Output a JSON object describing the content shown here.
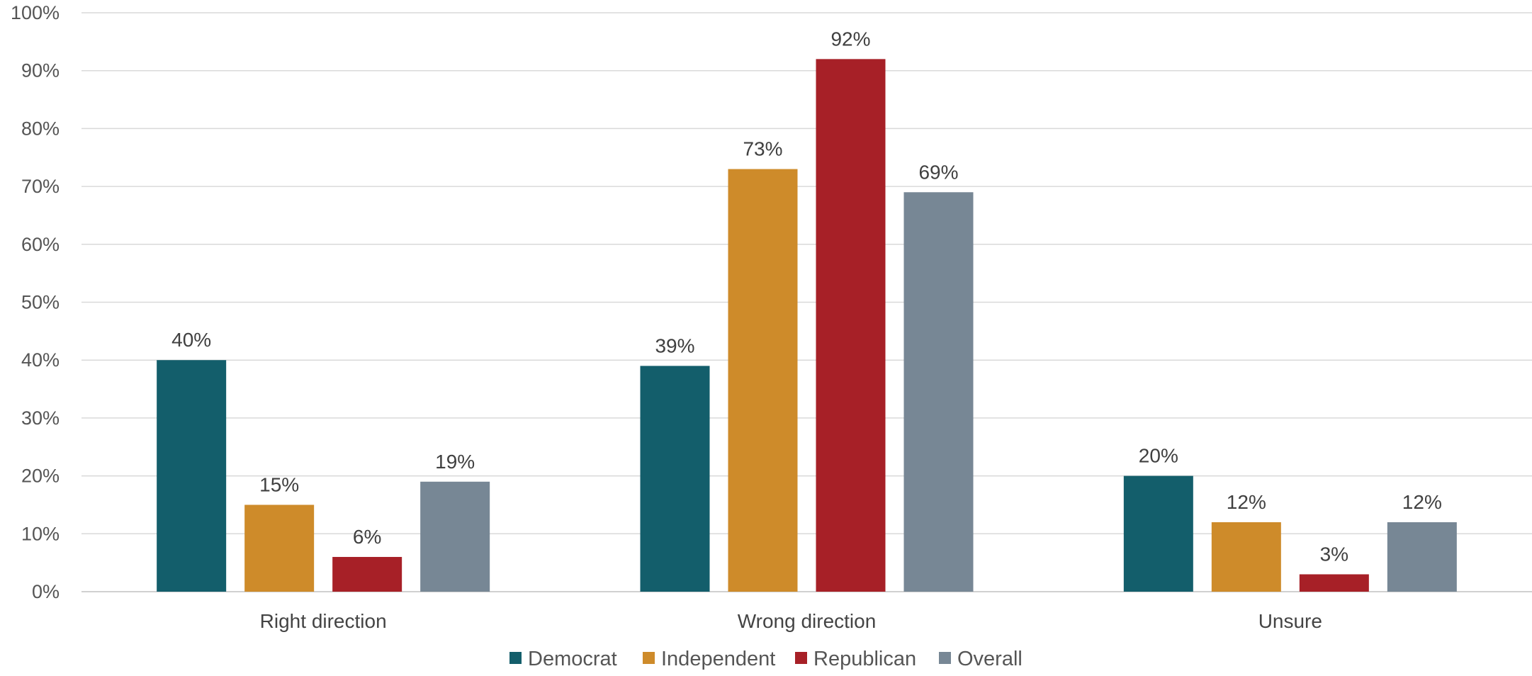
{
  "chart_data": {
    "type": "bar",
    "categories": [
      "Right direction",
      "Wrong direction",
      "Unsure"
    ],
    "series": [
      {
        "name": "Democrat",
        "color": "#135e6b",
        "values": [
          40,
          39,
          20
        ]
      },
      {
        "name": "Independent",
        "color": "#ce8b2a",
        "values": [
          15,
          73,
          12
        ]
      },
      {
        "name": "Republican",
        "color": "#a72027",
        "values": [
          6,
          92,
          3
        ]
      },
      {
        "name": "Overall",
        "color": "#778795",
        "values": [
          19,
          69,
          12
        ]
      }
    ],
    "ylim": [
      0,
      100
    ],
    "yticks": [
      0,
      10,
      20,
      30,
      40,
      50,
      60,
      70,
      80,
      90,
      100
    ],
    "value_suffix": "%",
    "grid": true,
    "legend_position": "bottom"
  }
}
